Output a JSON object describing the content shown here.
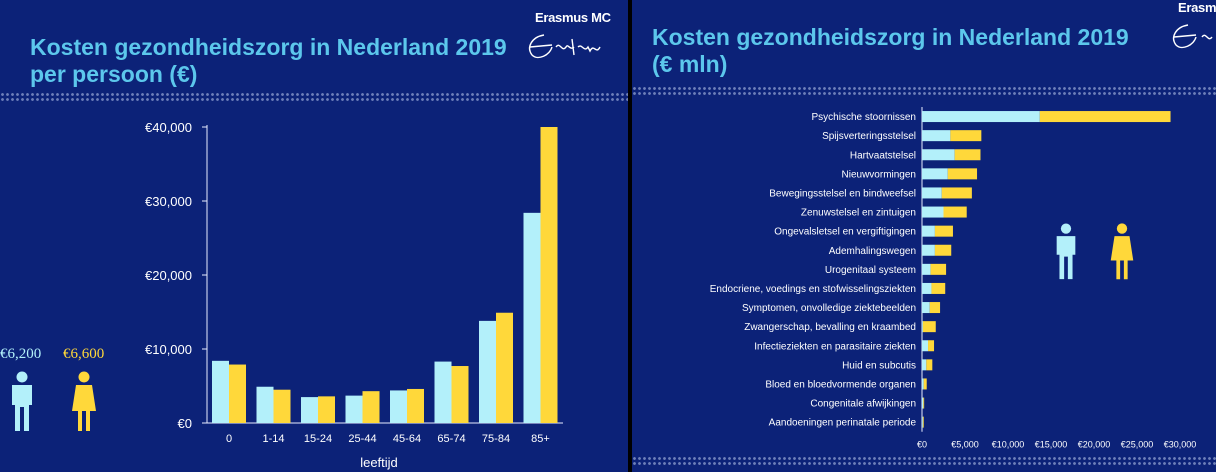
{
  "left": {
    "title_line1": "Kosten gezondheidszorg in Nederland 2019",
    "title_line2": "per persoon (€)",
    "logo_name": "Erasmus MC",
    "avg_male": "€6,200",
    "avg_female": "€6,600"
  },
  "right": {
    "title_line1": "Kosten gezondheidszorg in Nederland 2019",
    "title_line2": "(€ mln)",
    "logo_name": "Erasmus"
  },
  "colors": {
    "male": "#b3f0fa",
    "female": "#ffd83a",
    "title": "#5cc7ec",
    "background": "#0c2278"
  },
  "chart_data": [
    {
      "type": "bar",
      "title": "Kosten gezondheidszorg in Nederland 2019 per persoon (€)",
      "xlabel": "leeftijd",
      "ylabel": "",
      "ylim": [
        0,
        40000
      ],
      "yticks": [
        0,
        10000,
        20000,
        30000,
        40000
      ],
      "ytick_labels": [
        "€0",
        "€10,000",
        "€20,000",
        "€30,000",
        "€40,000"
      ],
      "categories": [
        "0",
        "1-14",
        "15-24",
        "25-44",
        "45-64",
        "65-74",
        "75-84",
        "85+"
      ],
      "series": [
        {
          "name": "man",
          "values": [
            8400,
            4900,
            3500,
            3700,
            4400,
            8300,
            13800,
            28400
          ]
        },
        {
          "name": "vrouw",
          "values": [
            7900,
            4500,
            3600,
            4300,
            4600,
            7700,
            14900,
            40000
          ]
        }
      ]
    },
    {
      "type": "bar",
      "orientation": "horizontal",
      "stacked": true,
      "title": "Kosten gezondheidszorg in Nederland 2019 (€ mln)",
      "xlim": [
        0,
        30000
      ],
      "xticks": [
        0,
        5000,
        10000,
        15000,
        20000,
        25000,
        30000
      ],
      "xtick_labels": [
        "€0",
        "€5,000",
        "€10,000",
        "€15,000",
        "€20,000",
        "€25,000",
        "€30,000"
      ],
      "categories": [
        "Psychische stoornissen",
        "Spijsverteringsstelsel",
        "Hartvaatstelsel",
        "Nieuwvormingen",
        "Bewegingsstelsel en bindweefsel",
        "Zenuwstelsel en zintuigen",
        "Ongevalsletsel en vergiftigingen",
        "Ademhalingswegen",
        "Urogenitaal systeem",
        "Endocriene, voedings en stofwisselingsziekten",
        "Symptomen, onvolledige ziektebeelden",
        "Zwangerschap, bevalling en kraambed",
        "Infectieziekten en parasitaire ziekten",
        "Huid en subcutis",
        "Bloed en bloedvormende organen",
        "Congenitale afwijkingen",
        "Aandoeningen perinatale periode"
      ],
      "series": [
        {
          "name": "man",
          "values": [
            13700,
            3300,
            3800,
            3000,
            2300,
            2500,
            1500,
            1500,
            1000,
            1100,
            900,
            100,
            700,
            500,
            200,
            150,
            100
          ]
        },
        {
          "name": "vrouw",
          "values": [
            15200,
            3600,
            3000,
            3400,
            3500,
            2700,
            2100,
            1900,
            1800,
            1600,
            1200,
            1500,
            700,
            700,
            350,
            100,
            100
          ]
        }
      ]
    }
  ]
}
